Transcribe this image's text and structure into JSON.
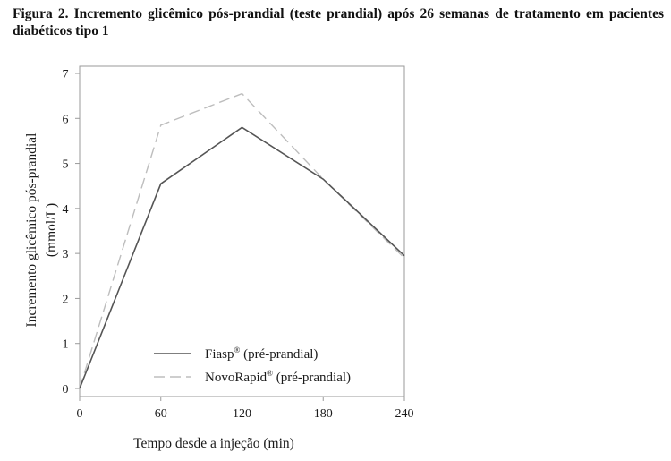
{
  "caption": "Figura 2. Incremento glicêmico pós-prandial (teste prandial) após 26 semanas de tratamento em pacientes diabéticos tipo 1",
  "colors": {
    "axis": "#9a9a9a",
    "fiasp": "#555555",
    "novorapid": "#bdbdbd",
    "text": "#1a1a1a"
  },
  "chart_data": {
    "type": "line",
    "title": "",
    "xlabel": "Tempo desde a injeção (min)",
    "ylabel": "Incremento glicêmico pós-prandial",
    "ylabel_unit": "(mmol/L)",
    "xlim": [
      0,
      240
    ],
    "ylim": [
      0,
      7
    ],
    "xticks": [
      0,
      60,
      120,
      180,
      240
    ],
    "yticks": [
      0,
      1,
      2,
      3,
      4,
      5,
      6,
      7
    ],
    "grid": false,
    "legend_position": "bottom-left",
    "series": [
      {
        "name": "Fiasp",
        "name_sup": "®",
        "name_suffix": " (pré-prandial)",
        "style": "solid",
        "color": "#555555",
        "x": [
          0,
          60,
          120,
          180,
          240
        ],
        "y": [
          0,
          4.55,
          5.8,
          4.65,
          2.95
        ]
      },
      {
        "name": "NovoRapid",
        "name_sup": "®",
        "name_suffix": " (pré-prandial)",
        "style": "dashed",
        "color": "#bdbdbd",
        "x": [
          0,
          60,
          120,
          180,
          240
        ],
        "y": [
          0,
          5.85,
          6.55,
          4.65,
          2.9
        ]
      }
    ]
  }
}
